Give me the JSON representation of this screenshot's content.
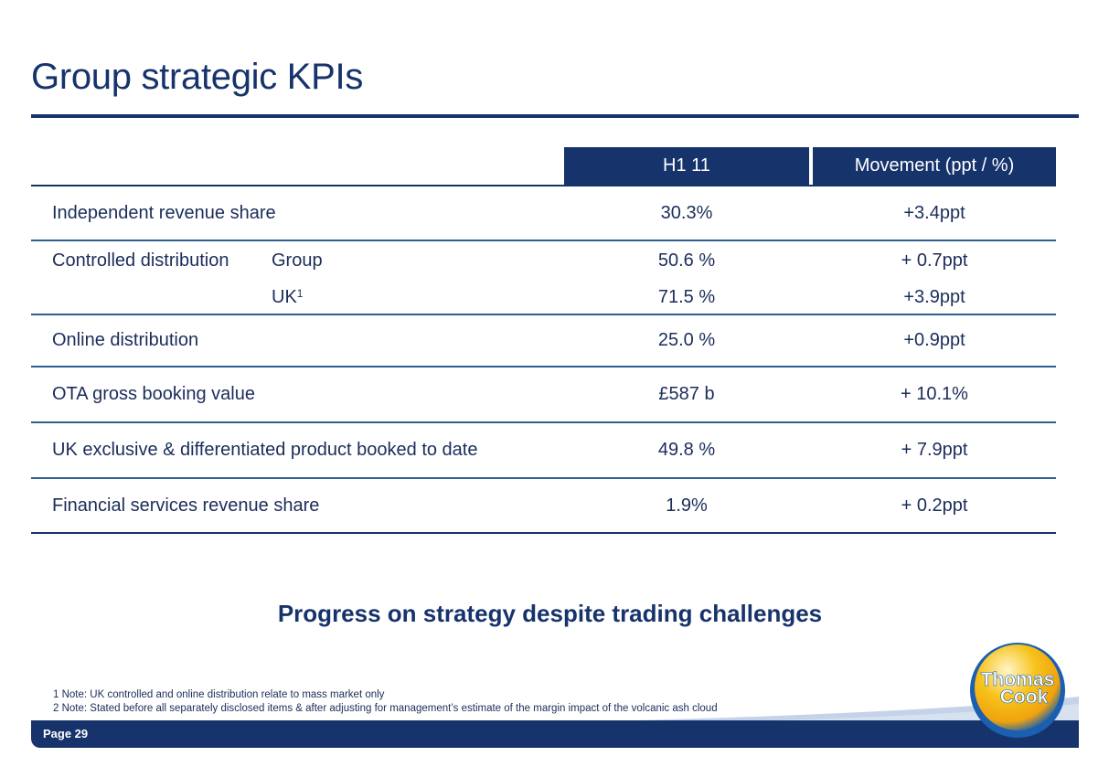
{
  "title": "Group strategic KPIs",
  "table": {
    "headers": {
      "col1": "H1 11",
      "col2": "Movement (ppt / %)"
    },
    "rows": [
      {
        "label": "Independent revenue share",
        "sub": "",
        "v1": "30.3%",
        "v2": "+3.4ppt"
      },
      {
        "label": "Controlled distribution",
        "sub": "Group",
        "v1": "50.6 %",
        "v2": "+ 0.7ppt"
      },
      {
        "label": "",
        "sub": "UK",
        "sub_sup": "1",
        "v1": "71.5 %",
        "v2": "+3.9ppt"
      },
      {
        "label": "Online distribution",
        "sub": "",
        "v1": "25.0 %",
        "v2": "+0.9ppt"
      },
      {
        "label": "OTA gross booking value",
        "sub": "",
        "v1": "£587 b",
        "v2": "+ 10.1%"
      },
      {
        "label": "UK exclusive & differentiated product booked to date",
        "sub": "",
        "v1": "49.8 %",
        "v2": "+ 7.9ppt"
      },
      {
        "label": "Financial services revenue share",
        "sub": "",
        "v1": "1.9%",
        "v2": "+ 0.2ppt"
      }
    ]
  },
  "tagline": "Progress on strategy despite trading challenges",
  "notes": [
    "1 Note:  UK controlled and online distribution relate to mass market only",
    "2 Note:  Stated before all separately disclosed items & after adjusting for management’s estimate of the margin impact of the volcanic ash cloud"
  ],
  "footer": {
    "page_label": "Page  29"
  },
  "logo": {
    "line1": "Thomas",
    "line2": "Cook"
  },
  "colors": {
    "brand_navy": "#17336b",
    "rule_blue": "#2e5f93",
    "logo_yellow": "#f7c21a",
    "logo_blue": "#1a5fb0"
  }
}
